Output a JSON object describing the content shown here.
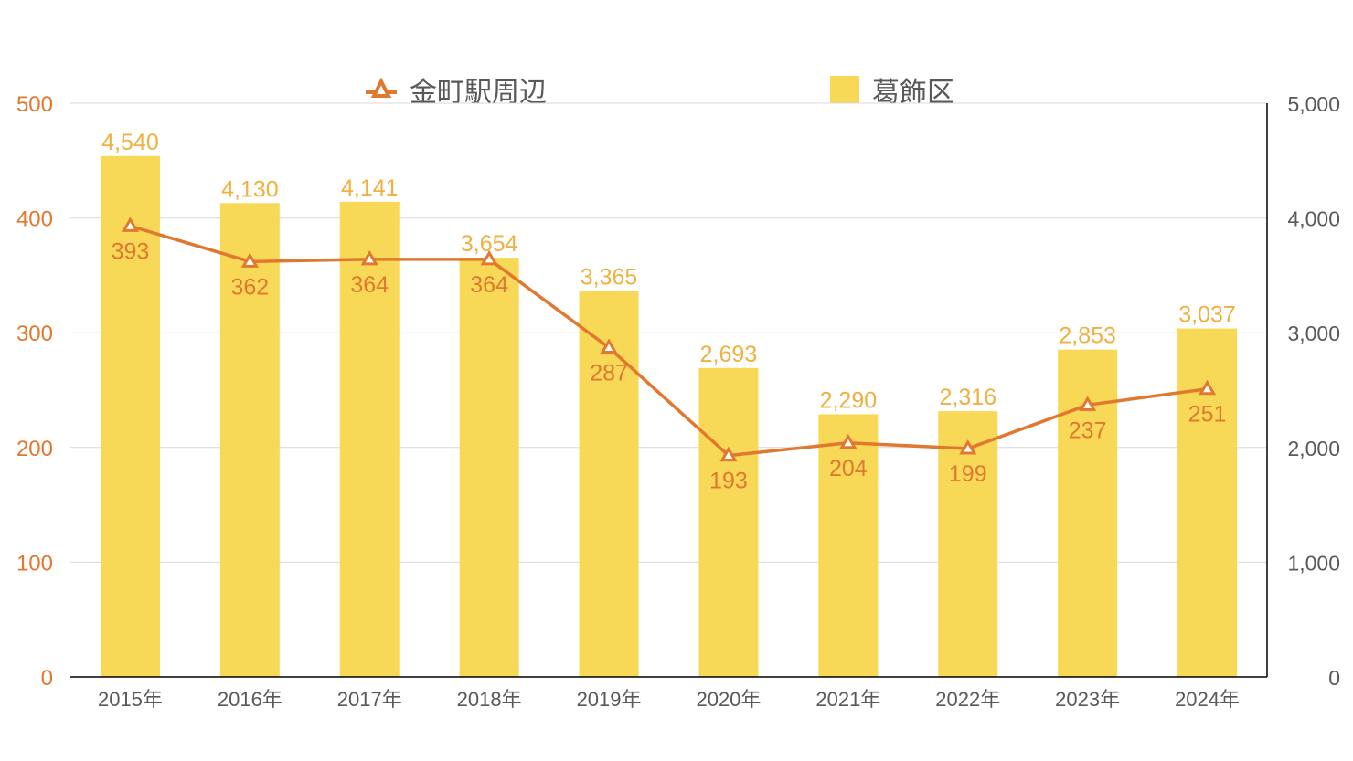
{
  "legend": {
    "line_label": "金町駅周辺",
    "bar_label": "葛飾区"
  },
  "colors": {
    "bar": "#F8D957",
    "bar_label": "#F0B040",
    "line": "#E07830",
    "left_axis_text": "#E07830",
    "right_axis_text": "#595959",
    "x_axis_text": "#595959",
    "grid": "#D9D9D9"
  },
  "chart_data": {
    "type": "bar+line",
    "categories": [
      "2015年",
      "2016年",
      "2017年",
      "2018年",
      "2019年",
      "2020年",
      "2021年",
      "2022年",
      "2023年",
      "2024年"
    ],
    "series": [
      {
        "name": "葛飾区",
        "type": "bar",
        "axis": "right",
        "values": [
          4540,
          4130,
          4141,
          3654,
          3365,
          2693,
          2290,
          2316,
          2853,
          3037
        ],
        "labels": [
          "4,540",
          "4,130",
          "4,141",
          "3,654",
          "3,365",
          "2,693",
          "2,290",
          "2,316",
          "2,853",
          "3,037"
        ]
      },
      {
        "name": "金町駅周辺",
        "type": "line",
        "marker": "triangle-open",
        "axis": "left",
        "values": [
          393,
          362,
          364,
          364,
          287,
          193,
          204,
          199,
          237,
          251
        ],
        "labels": [
          "393",
          "362",
          "364",
          "364",
          "287",
          "193",
          "204",
          "199",
          "237",
          "251"
        ]
      }
    ],
    "left_axis": {
      "ylim": [
        0,
        500
      ],
      "ticks": [
        "0",
        "100",
        "200",
        "300",
        "400",
        "500"
      ]
    },
    "right_axis": {
      "ylim": [
        0,
        5000
      ],
      "ticks": [
        "0",
        "1,000",
        "2,000",
        "3,000",
        "4,000",
        "5,000"
      ]
    },
    "title": "",
    "xlabel": "",
    "ylabel": "",
    "grid": true,
    "legend_position": "top"
  }
}
